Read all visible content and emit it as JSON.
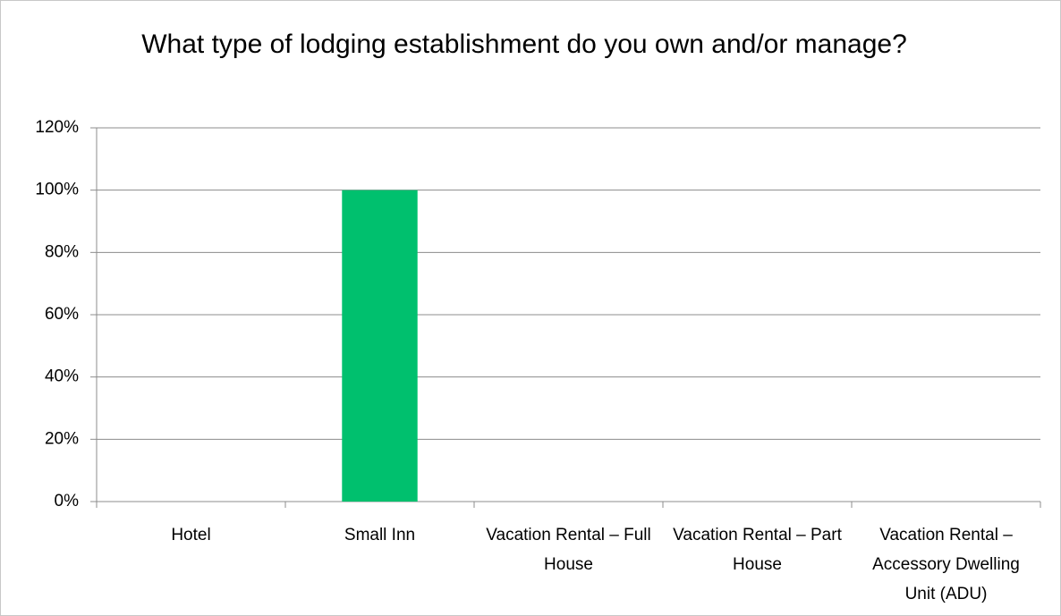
{
  "chart_data": {
    "type": "bar",
    "title": "What type of lodging establishment do you own and/or manage?",
    "categories": [
      "Hotel",
      "Small Inn",
      "Vacation Rental – Full House",
      "Vacation Rental – Part House",
      "Vacation Rental – Accessory Dwelling Unit (ADU)"
    ],
    "values": [
      0,
      100,
      0,
      0,
      0
    ],
    "color": "#00c06e",
    "ylim": [
      0,
      120
    ],
    "yticks": [
      {
        "value": 0,
        "label": "0%"
      },
      {
        "value": 20,
        "label": "20%"
      },
      {
        "value": 40,
        "label": "40%"
      },
      {
        "value": 60,
        "label": "60%"
      },
      {
        "value": 80,
        "label": "80%"
      },
      {
        "value": 100,
        "label": "100%"
      },
      {
        "value": 120,
        "label": "120%"
      }
    ],
    "grid": true
  }
}
